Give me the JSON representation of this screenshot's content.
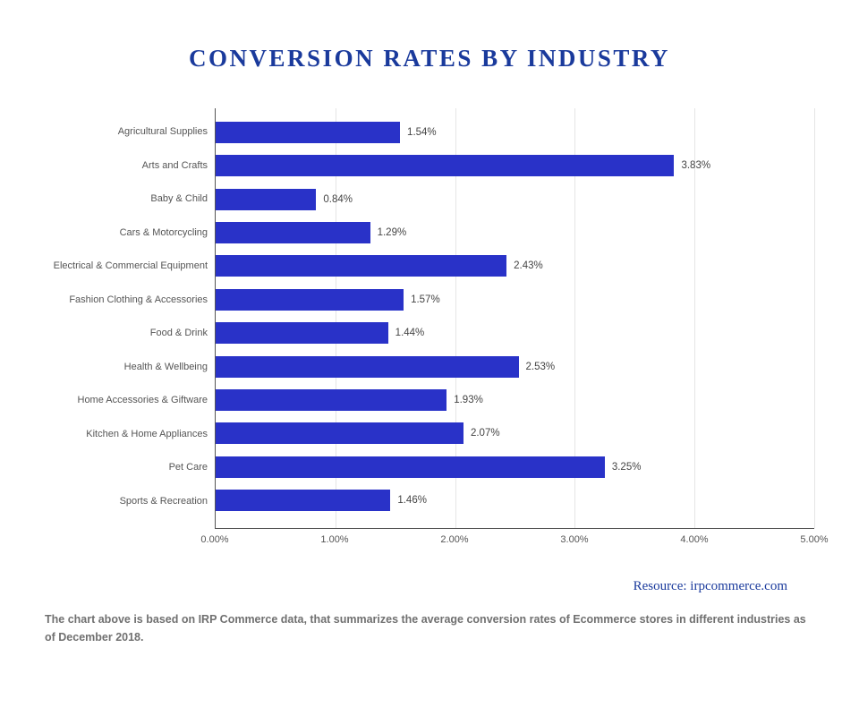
{
  "title": {
    "text": "CONVERSION RATES BY INDUSTRY",
    "color": "#1a3a9c",
    "fontsize": 27
  },
  "chart": {
    "type": "horizontal-bar",
    "xlim": [
      0,
      5
    ],
    "xtick_step": 1,
    "x_ticks": [
      "0.00%",
      "1.00%",
      "2.00%",
      "3.00%",
      "4.00%",
      "5.00%"
    ],
    "bar_color": "#2932c8",
    "grid_color": "#e5e5e5",
    "axis_color": "#555555",
    "label_color": "#555555",
    "label_fontsize": 11,
    "value_label_fontsize": 11.5,
    "background_color": "#ffffff",
    "categories": [
      {
        "label": "Agricultural Supplies",
        "value": 1.54,
        "value_label": "1.54%"
      },
      {
        "label": "Arts and Crafts",
        "value": 3.83,
        "value_label": "3.83%"
      },
      {
        "label": "Baby & Child",
        "value": 0.84,
        "value_label": "0.84%"
      },
      {
        "label": "Cars & Motorcycling",
        "value": 1.29,
        "value_label": "1.29%"
      },
      {
        "label": "Electrical & Commercial Equipment",
        "value": 2.43,
        "value_label": "2.43%"
      },
      {
        "label": "Fashion Clothing & Accessories",
        "value": 1.57,
        "value_label": "1.57%"
      },
      {
        "label": "Food & Drink",
        "value": 1.44,
        "value_label": "1.44%"
      },
      {
        "label": "Health & Wellbeing",
        "value": 2.53,
        "value_label": "2.53%"
      },
      {
        "label": "Home Accessories & Giftware",
        "value": 1.93,
        "value_label": "1.93%"
      },
      {
        "label": "Kitchen & Home Appliances",
        "value": 2.07,
        "value_label": "2.07%"
      },
      {
        "label": "Pet Care",
        "value": 3.25,
        "value_label": "3.25%"
      },
      {
        "label": "Sports & Recreation",
        "value": 1.46,
        "value_label": "1.46%"
      }
    ]
  },
  "resource": {
    "prefix": "Resource: ",
    "link": "irpcommerce.com",
    "color": "#1a3a9c",
    "fontsize": 15
  },
  "caption": "The chart above is based on IRP Commerce data, that summarizes the average conversion rates of Ecommerce stores in different industries as of December 2018."
}
